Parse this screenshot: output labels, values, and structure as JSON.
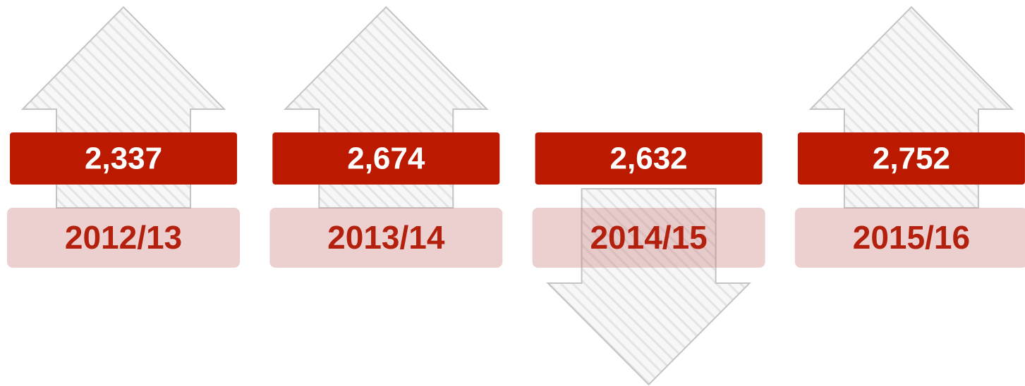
{
  "items": [
    {
      "value": "2,337",
      "year": "2012/13",
      "direction": "up"
    },
    {
      "value": "2,674",
      "year": "2013/14",
      "direction": "up"
    },
    {
      "value": "2,632",
      "year": "2014/15",
      "direction": "down"
    },
    {
      "value": "2,752",
      "year": "2015/16",
      "direction": "up"
    }
  ]
}
